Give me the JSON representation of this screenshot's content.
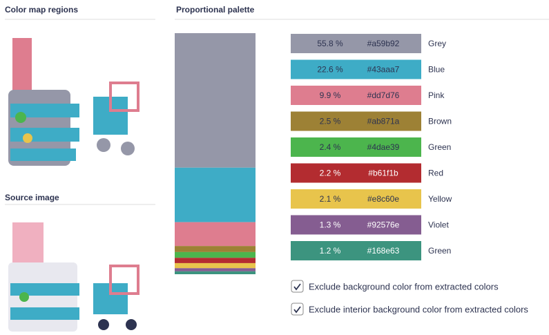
{
  "sections": {
    "color_map": "Color map regions",
    "source": "Source image",
    "palette": "Proportional palette"
  },
  "palette": [
    {
      "percent": 55.8,
      "percent_label": "55.8 %",
      "hex": "#a59b92",
      "name": "Grey",
      "color": "#9597a8",
      "label_color": "#2d3350"
    },
    {
      "percent": 22.6,
      "percent_label": "22.6 %",
      "hex": "#43aaa7",
      "name": "Blue",
      "color": "#3eacc6",
      "label_color": "#2d3350"
    },
    {
      "percent": 9.9,
      "percent_label": "9.9 %",
      "hex": "#dd7d76",
      "name": "Pink",
      "color": "#de7d8f",
      "label_color": "#2d3350"
    },
    {
      "percent": 2.5,
      "percent_label": "2.5 %",
      "hex": "#ab871a",
      "name": "Brown",
      "color": "#9d8135",
      "label_color": "#2d3350"
    },
    {
      "percent": 2.4,
      "percent_label": "2.4 %",
      "hex": "#4dae39",
      "name": "Green",
      "color": "#4cb54d",
      "label_color": "#2d3350"
    },
    {
      "percent": 2.2,
      "percent_label": "2.2 %",
      "hex": "#b61f1b",
      "name": "Red",
      "color": "#b32c30",
      "label_color": "#ffffff"
    },
    {
      "percent": 2.1,
      "percent_label": "2.1 %",
      "hex": "#e8c60e",
      "name": "Yellow",
      "color": "#e8c44c",
      "label_color": "#2d3350"
    },
    {
      "percent": 1.3,
      "percent_label": "1.3 %",
      "hex": "#92576e",
      "name": "Violet",
      "color": "#855d91",
      "label_color": "#ffffff"
    },
    {
      "percent": 1.2,
      "percent_label": "1.2 %",
      "hex": "#168e63",
      "name": "Green",
      "color": "#3c947f",
      "label_color": "#ffffff"
    }
  ],
  "options": [
    {
      "label": "Exclude background color from extracted colors",
      "checked": true
    },
    {
      "label": "Exclude interior background color from extracted colors",
      "checked": true
    }
  ]
}
